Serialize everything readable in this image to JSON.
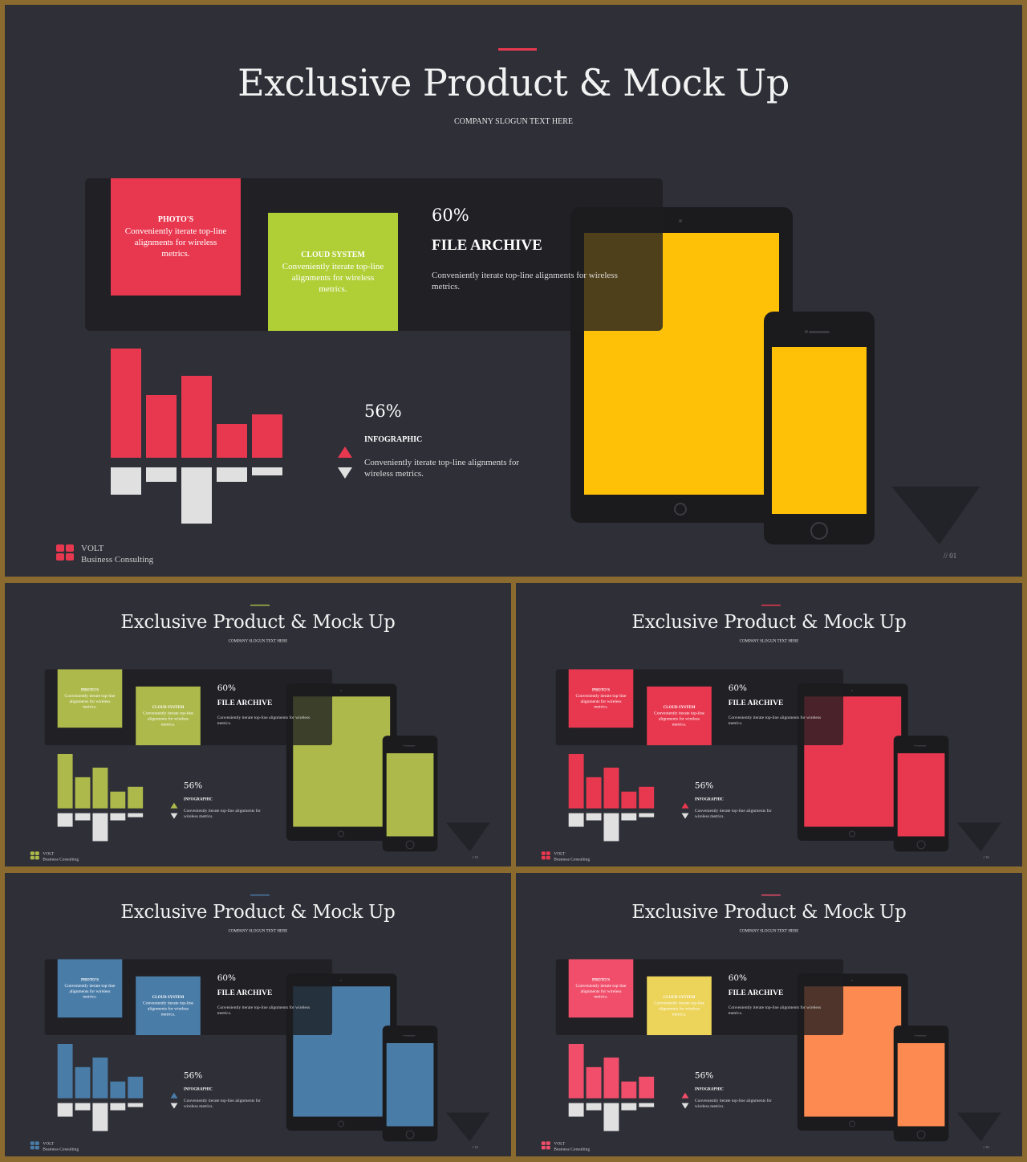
{
  "slide": {
    "title": "Exclusive Product & Mock Up",
    "slogan": "COMPANY SLOGUN TEXT HERE",
    "box1_title": "PHOTO'S",
    "box1_text": "Conveniently iterate top-line alignments for wireless metrics.",
    "box2_title": "CLOUD SYSTEM",
    "box2_text": "Conveniently iterate top-line alignments for wireless metrics.",
    "archive_pct": "60%",
    "archive_title": "FILE ARCHIVE",
    "archive_text": "Conveniently iterate top-line alignments for wireless metrics.",
    "infographic_pct": "56%",
    "infographic_title": "INFOGRAPHIC",
    "infographic_text": "Conveniently iterate top-line alignments for wireless metrics.",
    "brand_name": "VOLT",
    "brand_sub": "Business  Consulting",
    "page_number": "// 01"
  },
  "bars_up": [
    136,
    78,
    102,
    42,
    54
  ],
  "bars_down": [
    34,
    18,
    70,
    18,
    10
  ],
  "variants": [
    {
      "accent": "#e8384f",
      "box1": "#e8384f",
      "box2": "#b0cf36",
      "device": "#ffc107",
      "bars": "#e8384f",
      "logo": "#e8384f",
      "tri": "#e8384f"
    },
    {
      "accent": "#adb94a",
      "box1": "#adb94a",
      "box2": "#adb94a",
      "device": "#adb94a",
      "bars": "#adb94a",
      "logo": "#adb94a",
      "tri": "#adb94a"
    },
    {
      "accent": "#e8384f",
      "box1": "#e8384f",
      "box2": "#e8384f",
      "device": "#e8384f",
      "bars": "#e8384f",
      "logo": "#e8384f",
      "tri": "#e8384f"
    },
    {
      "accent": "#4a7ca8",
      "box1": "#4a7ca8",
      "box2": "#4a7ca8",
      "device": "#4a7ca8",
      "bars": "#4a7ca8",
      "logo": "#4a7ca8",
      "tri": "#4a7ca8"
    },
    {
      "accent": "#f04e6a",
      "box1": "#f04e6a",
      "box2": "#ecd35a",
      "device": "#fd8a50",
      "bars": "#f04e6a",
      "logo": "#f04e6a",
      "tri": "#f04e6a"
    }
  ]
}
